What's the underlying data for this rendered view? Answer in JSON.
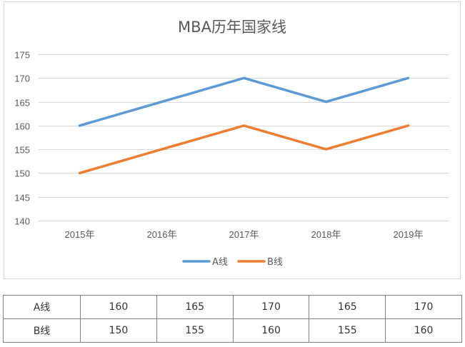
{
  "chart_data": {
    "type": "line",
    "title": "MBA历年国家线",
    "categories": [
      "2015年",
      "2016年",
      "2017年",
      "2018年",
      "2019年"
    ],
    "ylim": [
      140,
      175
    ],
    "ytick_step": 5,
    "grid": true,
    "legend_position": "bottom",
    "series": [
      {
        "name": "A线",
        "values": [
          160,
          165,
          170,
          165,
          170
        ],
        "color": "#5b9bd5"
      },
      {
        "name": "B线",
        "values": [
          150,
          155,
          160,
          155,
          160
        ],
        "color": "#ed7d31"
      }
    ]
  },
  "table": {
    "rows": [
      {
        "label": "A线",
        "values": [
          "160",
          "165",
          "170",
          "165",
          "170"
        ]
      },
      {
        "label": "B线",
        "values": [
          "150",
          "155",
          "160",
          "155",
          "160"
        ]
      }
    ]
  }
}
